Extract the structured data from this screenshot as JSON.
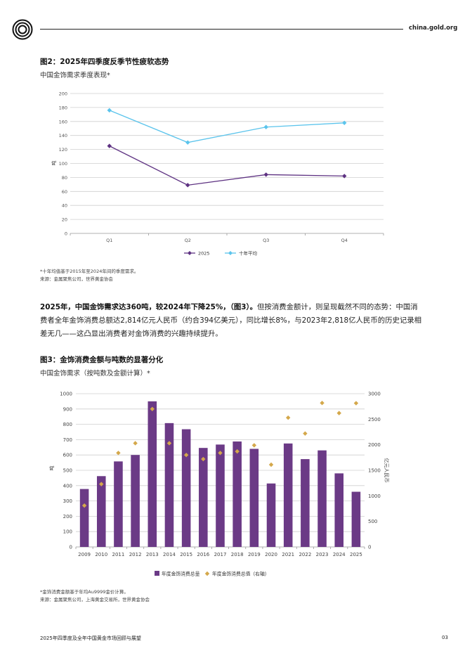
{
  "header": {
    "site": "china.gold.org"
  },
  "figure2": {
    "title": "图2：2025年四季度反季节性疲软态势",
    "subtitle": "中国金饰需求季度表现*",
    "notes": [
      "*十年均值基于2015年至2024年间的季度需求。",
      "来源：金属聚焦公司，世界黄金协会"
    ]
  },
  "figure3": {
    "title": "图3：金饰消费金额与吨数的显著分化",
    "subtitle": "中国金饰需求（按吨数及金额计算）*",
    "notes": [
      "*金饰消费金额基于年均Au9999金价计算。",
      "来源：金属聚焦公司，上海黄金交易所，世界黄金协会"
    ]
  },
  "paragraph": {
    "bold_part": "2025年，中国金饰需求达360吨，较2024年下降25%，（图3）。",
    "normal_part": "但按消费金额计，则呈现截然不同的态势：中国消费者全年金饰消费总额达2,814亿元人民币（约合394亿美元），同比增长8%，与2023年2,818亿人民币的历史记录相差无几——这凸显出消费者对金饰消费的兴趣持续提升。"
  },
  "footer": {
    "left": "2025年四季度及全年中国黄金市场回顾与展望",
    "page": "03"
  },
  "colors": {
    "purple": "#6b3a86",
    "light_blue": "#5bc4ec",
    "gold": "#d4a84b",
    "grid": "#cfcfcf"
  },
  "chart_data": [
    {
      "type": "line",
      "categories": [
        "Q1",
        "Q2",
        "Q3",
        "Q4"
      ],
      "series": [
        {
          "name": "2025",
          "values": [
            125,
            69,
            84,
            82
          ],
          "color": "#5e3282",
          "marker": "diamond"
        },
        {
          "name": "十年平均",
          "values": [
            176,
            130,
            152,
            158
          ],
          "color": "#5bc4ec",
          "marker": "diamond"
        }
      ],
      "ylabel": "吨",
      "ylim": [
        0,
        200
      ],
      "yticks": [
        0,
        20,
        40,
        60,
        80,
        100,
        120,
        140,
        160,
        180,
        200
      ],
      "legend": "bottom-center"
    },
    {
      "type": "bar",
      "categories": [
        "2009",
        "2010",
        "2011",
        "2012",
        "2013",
        "2014",
        "2015",
        "2016",
        "2017",
        "2018",
        "2019",
        "2020",
        "2021",
        "2022",
        "2023",
        "2024",
        "2025"
      ],
      "series": [
        {
          "name": "年度金饰消费总量",
          "axis": "left",
          "type": "bar",
          "color": "#6b3a86",
          "values": [
            378,
            462,
            558,
            600,
            950,
            808,
            768,
            646,
            668,
            688,
            640,
            414,
            675,
            573,
            630,
            480,
            360
          ]
        },
        {
          "name": "年度金饰消费总值（右轴）",
          "axis": "right",
          "type": "scatter",
          "color": "#d4a84b",
          "values": [
            810,
            1230,
            1840,
            2030,
            2700,
            2030,
            1800,
            1720,
            1840,
            1870,
            1990,
            1610,
            2530,
            2220,
            2818,
            2620,
            2814
          ]
        }
      ],
      "ylabel": "吨",
      "y2label": "亿元人民币",
      "ylim": [
        0,
        1000
      ],
      "yticks": [
        0,
        100,
        200,
        300,
        400,
        500,
        600,
        700,
        800,
        900,
        1000
      ],
      "y2lim": [
        0,
        3000
      ],
      "y2ticks": [
        0,
        500,
        1000,
        1500,
        2000,
        2500,
        3000
      ],
      "legend": "bottom-center"
    }
  ]
}
